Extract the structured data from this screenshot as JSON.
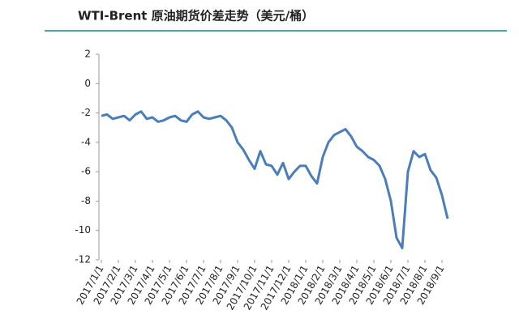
{
  "chart_data": {
    "type": "line",
    "title": "WTI-Brent 原油期货价差走势（美元/桶）",
    "categories": [
      "2017/1/1",
      null,
      null,
      "2017/2/1",
      null,
      null,
      "2017/3/1",
      null,
      null,
      "2017/4/1",
      null,
      null,
      "2017/5/1",
      null,
      null,
      "2017/6/1",
      null,
      null,
      "2017/7/1",
      null,
      null,
      "2017/8/1",
      null,
      null,
      "2017/9/1",
      null,
      null,
      "2017/10/1",
      null,
      null,
      "2017/11/1",
      null,
      null,
      "2017/12/1",
      null,
      null,
      "2018/1/1",
      null,
      null,
      "2018/2/1",
      null,
      null,
      "2018/3/1",
      null,
      null,
      "2018/4/1",
      null,
      null,
      "2018/5/1",
      null,
      null,
      "2018/6/1",
      null,
      null,
      "2018/7/1",
      null,
      null,
      "2018/8/1",
      null,
      null,
      "2018/9/1",
      null
    ],
    "series": [
      {
        "color": "#4a7ebb",
        "values": [
          -2.2,
          -2.1,
          -2.4,
          -2.3,
          -2.2,
          -2.5,
          -2.1,
          -1.9,
          -2.4,
          -2.3,
          -2.6,
          -2.5,
          -2.3,
          -2.2,
          -2.5,
          -2.6,
          -2.1,
          -1.9,
          -2.3,
          -2.4,
          -2.3,
          -2.2,
          -2.5,
          -3.0,
          -4.0,
          -4.5,
          -5.2,
          -5.8,
          -4.6,
          -5.5,
          -5.6,
          -6.2,
          -5.4,
          -6.5,
          -6.0,
          -5.6,
          -5.6,
          -6.3,
          -6.8,
          -5.0,
          -4.0,
          -3.5,
          -3.3,
          -3.1,
          -3.6,
          -4.3,
          -4.6,
          -5.0,
          -5.2,
          -5.6,
          -6.5,
          -8.0,
          -10.5,
          -11.2,
          -6.0,
          -4.6,
          -5.0,
          -4.8,
          -5.9,
          -6.4,
          -7.6,
          -9.2
        ]
      }
    ],
    "ylim": [
      -12,
      2
    ],
    "yticks": [
      -12,
      -10,
      -8,
      -6,
      -4,
      -2,
      0,
      2
    ]
  }
}
